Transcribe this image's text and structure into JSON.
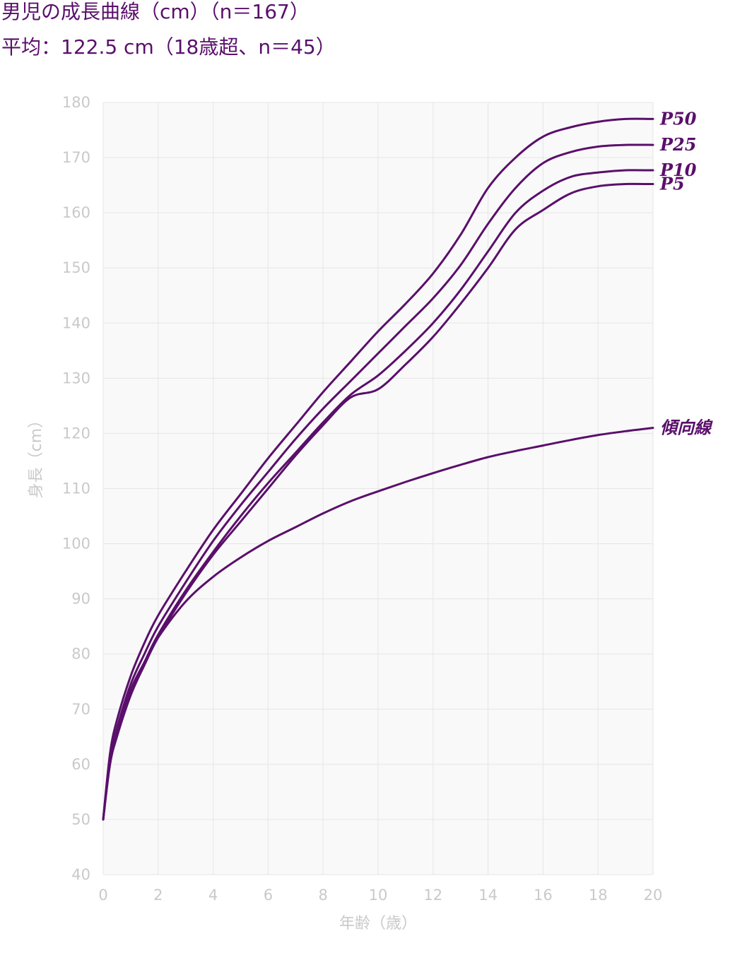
{
  "header": {
    "title": "男児の成長曲線（cm）（n＝167）",
    "subtitle": "平均：122.5 cm（18歳超、n＝45）"
  },
  "chart_data": {
    "type": "line",
    "xlabel": "年齢（歳）",
    "ylabel": "身長（cm）",
    "xlim": [
      0,
      20
    ],
    "ylim": [
      40,
      180
    ],
    "xticks": [
      0,
      2,
      4,
      6,
      8,
      10,
      12,
      14,
      16,
      18,
      20
    ],
    "yticks": [
      40,
      50,
      60,
      70,
      80,
      90,
      100,
      110,
      120,
      130,
      140,
      150,
      160,
      170,
      180
    ],
    "grid": true,
    "line_color": "#5a0f6b",
    "series": [
      {
        "name": "P50",
        "x": [
          0,
          0.25,
          0.5,
          1,
          1.5,
          2,
          3,
          4,
          5,
          6,
          7,
          8,
          9,
          10,
          11,
          12,
          13,
          14,
          15,
          16,
          17,
          18,
          19,
          20
        ],
        "y": [
          50,
          62,
          68,
          76,
          82,
          87,
          95,
          102.5,
          109,
          115.5,
          121.5,
          127.5,
          133,
          138.5,
          143.5,
          149,
          156,
          164.5,
          170,
          173.8,
          175.5,
          176.5,
          177,
          177
        ]
      },
      {
        "name": "P25",
        "x": [
          0,
          0.25,
          0.5,
          1,
          1.5,
          2,
          3,
          4,
          5,
          6,
          7,
          8,
          9,
          10,
          11,
          12,
          13,
          14,
          15,
          16,
          17,
          18,
          19,
          20
        ],
        "y": [
          50,
          61,
          66.5,
          74.5,
          80,
          85,
          93,
          100.5,
          107,
          113,
          119,
          124.5,
          129.5,
          134.5,
          139.5,
          144.5,
          150.5,
          158,
          164.5,
          169,
          171,
          172,
          172.3,
          172.3
        ]
      },
      {
        "name": "P10",
        "x": [
          0,
          0.25,
          0.5,
          1,
          1.5,
          2,
          3,
          4,
          5,
          6,
          7,
          8,
          9,
          10,
          11,
          12,
          13,
          14,
          15,
          16,
          17,
          18,
          19,
          20
        ],
        "y": [
          50,
          60.5,
          65.5,
          73,
          78.5,
          83.5,
          91.5,
          98.5,
          105,
          111,
          116.5,
          122,
          127,
          130.5,
          135,
          140,
          146,
          153,
          160,
          164,
          166.5,
          167.3,
          167.7,
          167.7
        ]
      },
      {
        "name": "P5",
        "x": [
          0,
          0.25,
          0.5,
          1,
          1.5,
          2,
          3,
          4,
          5,
          6,
          7,
          8,
          9,
          10,
          11,
          12,
          13,
          14,
          15,
          16,
          17,
          18,
          19,
          20
        ],
        "y": [
          50,
          60,
          65,
          72.5,
          78,
          83,
          91,
          98,
          104,
          110,
          116,
          121.5,
          126.5,
          128,
          132.5,
          137.5,
          143.5,
          150,
          157,
          160.5,
          163.5,
          164.8,
          165.2,
          165.2
        ]
      },
      {
        "name": "傾向線",
        "x": [
          0,
          0.25,
          0.5,
          1,
          1.5,
          2,
          3,
          4,
          5,
          6,
          7,
          8,
          9,
          10,
          11,
          12,
          13,
          14,
          15,
          16,
          17,
          18,
          19,
          20
        ],
        "y": [
          50,
          61,
          66,
          73.5,
          78.5,
          83,
          89.5,
          94,
          97.5,
          100.5,
          103,
          105.5,
          107.7,
          109.5,
          111.2,
          112.8,
          114.3,
          115.7,
          116.8,
          117.8,
          118.8,
          119.7,
          120.4,
          121
        ]
      }
    ]
  }
}
